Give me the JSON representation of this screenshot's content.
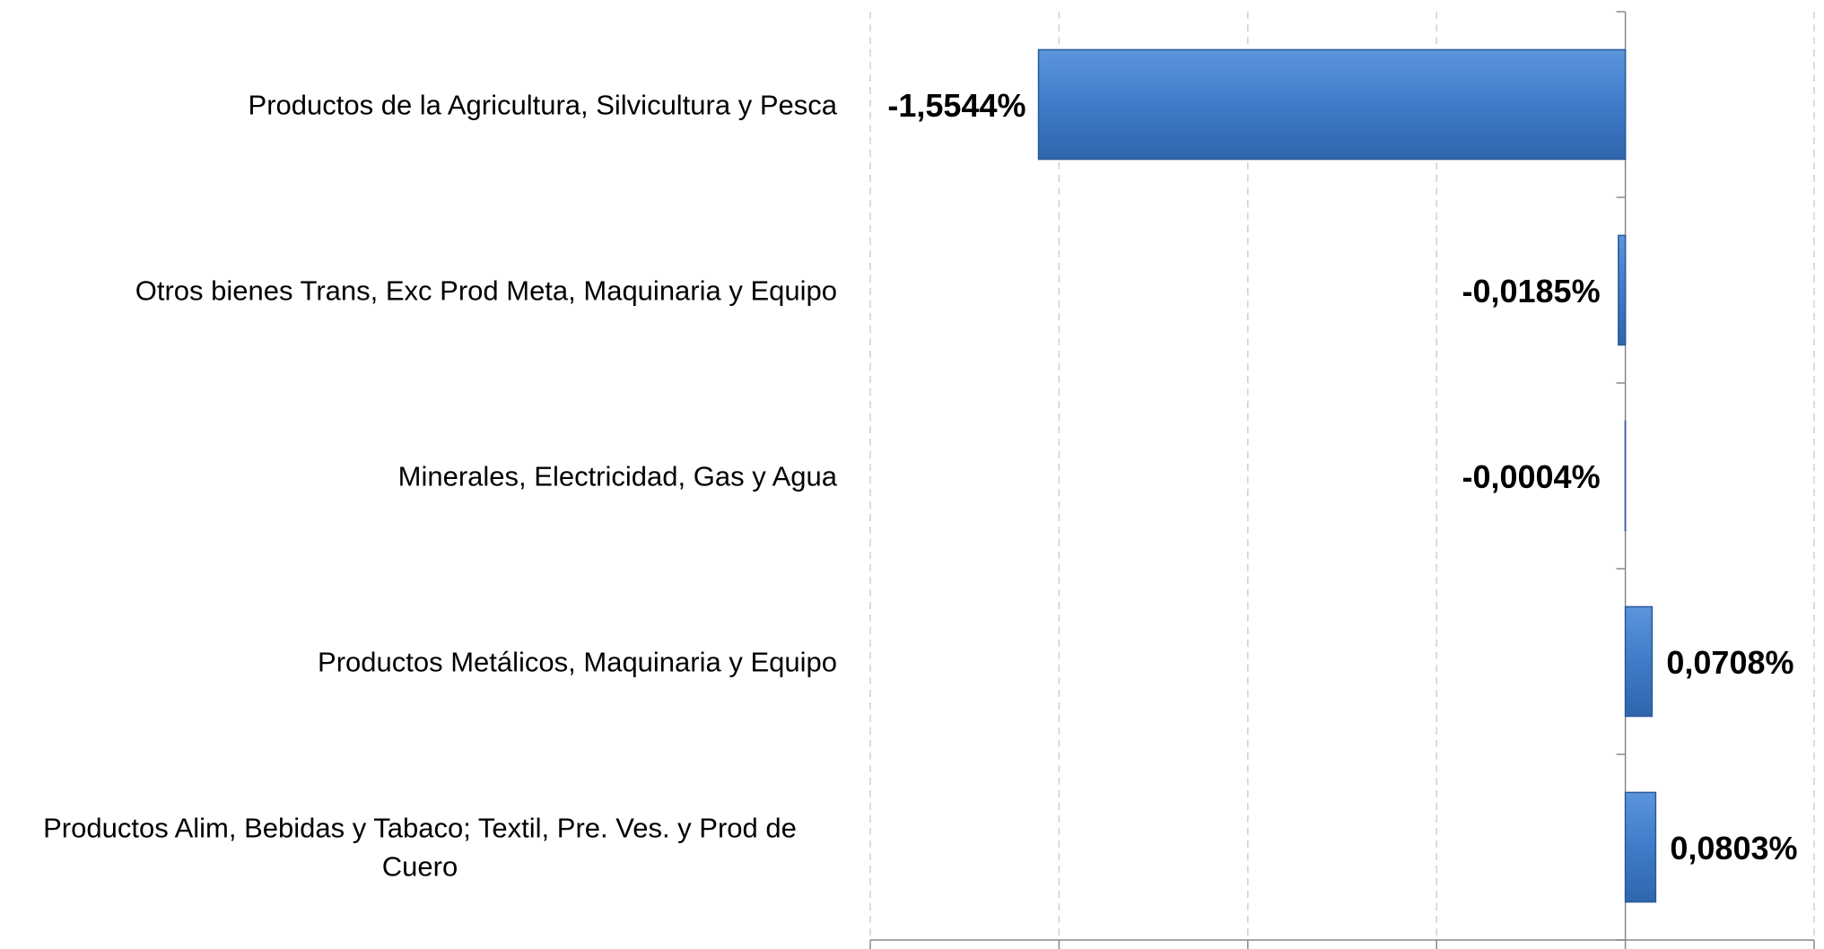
{
  "chart_data": {
    "type": "barh",
    "categories": [
      "Productos de la Agricultura, Silvicultura y Pesca",
      "Otros bienes Trans, Exc Prod Meta, Maquinaria y Equipo",
      "Minerales, Electricidad, Gas y Agua",
      "Productos Metálicos, Maquinaria y Equipo",
      "Productos  Alim, Bebidas y Tabaco; Textil, Pre. Ves. y Prod de Cuero"
    ],
    "values": [
      -1.5544,
      -0.0185,
      -0.0004,
      0.0708,
      0.0803
    ],
    "value_labels": [
      "-1,5544%",
      "-0,0185%",
      "-0,0004%",
      "0,0708%",
      "0,0803%"
    ],
    "color": "#3f7bc8",
    "xlim": [
      -2,
      0.5
    ],
    "xticks": [
      -2,
      -1.5,
      -1,
      -0.5,
      0,
      0.5
    ],
    "grid": true
  }
}
